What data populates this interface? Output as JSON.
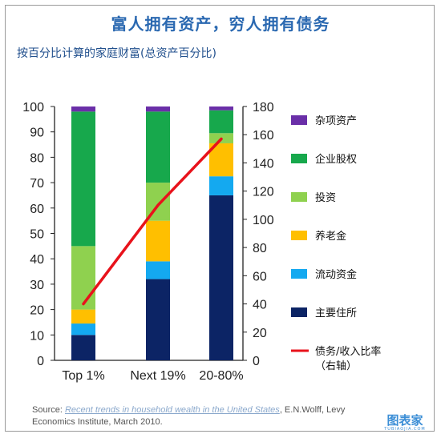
{
  "title": "富人拥有资产，穷人拥有债务",
  "subtitle": "按百分比计算的家庭财富(总资产百分比)",
  "source": {
    "label": "Source: ",
    "link_text": "Recent trends in household wealth in the United States",
    "rest": ", E.N.Wolff, Levy Economics Institute, March 2010."
  },
  "logo": {
    "text": "图表家",
    "small": "TUBIAOJIA.COM"
  },
  "colors": {
    "杂项资产": "#6a2fa8",
    "企业股权": "#17a84c",
    "投资": "#8fd14f",
    "养老金": "#ffbf00",
    "流动资金": "#14a9f0",
    "主要住所": "#0c2465",
    "债务/收入比率（右轴）": "#e8121b"
  },
  "chart_data": {
    "type": "bar",
    "stacked": true,
    "categories": [
      "Top 1%",
      "Next 19%",
      "20-80%"
    ],
    "series": [
      {
        "name": "主要住所",
        "values": [
          10,
          32,
          65
        ]
      },
      {
        "name": "流动资金",
        "values": [
          4.5,
          7,
          7.5
        ]
      },
      {
        "name": "养老金",
        "values": [
          5.5,
          16,
          13
        ]
      },
      {
        "name": "投资",
        "values": [
          25,
          15,
          4
        ]
      },
      {
        "name": "企业股权",
        "values": [
          53,
          28,
          9
        ]
      },
      {
        "name": "杂项资产",
        "values": [
          2,
          2,
          1.5
        ]
      }
    ],
    "line_series": {
      "name": "债务/收入比率（右轴）",
      "axis": "right",
      "values": [
        40,
        110,
        157
      ]
    },
    "ylim": [
      0,
      100
    ],
    "yticks": [
      0,
      10,
      20,
      30,
      40,
      50,
      60,
      70,
      80,
      90,
      100
    ],
    "y2lim": [
      0,
      180
    ],
    "y2ticks": [
      0,
      20,
      40,
      60,
      80,
      100,
      120,
      140,
      160,
      180
    ],
    "legend_items": [
      "杂项资产",
      "企业股权",
      "投资",
      "养老金",
      "流动资金",
      "主要住所",
      "债务/收入比率（右轴）"
    ],
    "legend_placement": "right",
    "grid": false
  }
}
